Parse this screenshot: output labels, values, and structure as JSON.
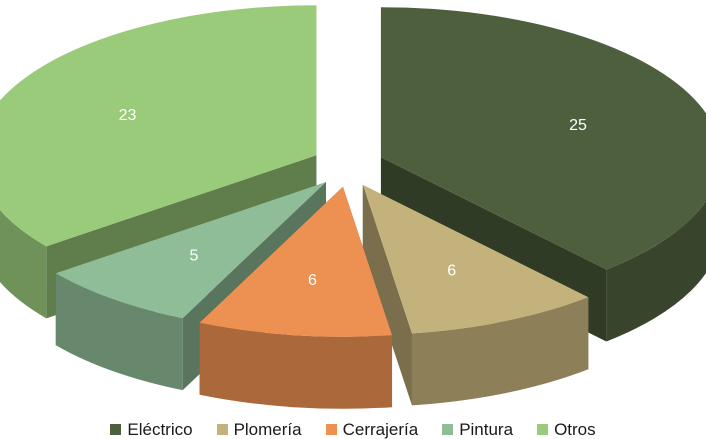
{
  "chart_data": {
    "type": "pie",
    "variant": "3d-exploded",
    "title": "",
    "legend_position": "bottom",
    "slices": [
      {
        "label": "Eléctrico",
        "value": 25,
        "color": "#4e5f3d"
      },
      {
        "label": "Plomería",
        "value": 6,
        "color": "#c4b27c"
      },
      {
        "label": "Cerrajería",
        "value": 6,
        "color": "#ec9152"
      },
      {
        "label": "Pintura",
        "value": 5,
        "color": "#8fbd97"
      },
      {
        "label": "Otros",
        "value": 23,
        "color": "#9acb7b"
      }
    ]
  }
}
